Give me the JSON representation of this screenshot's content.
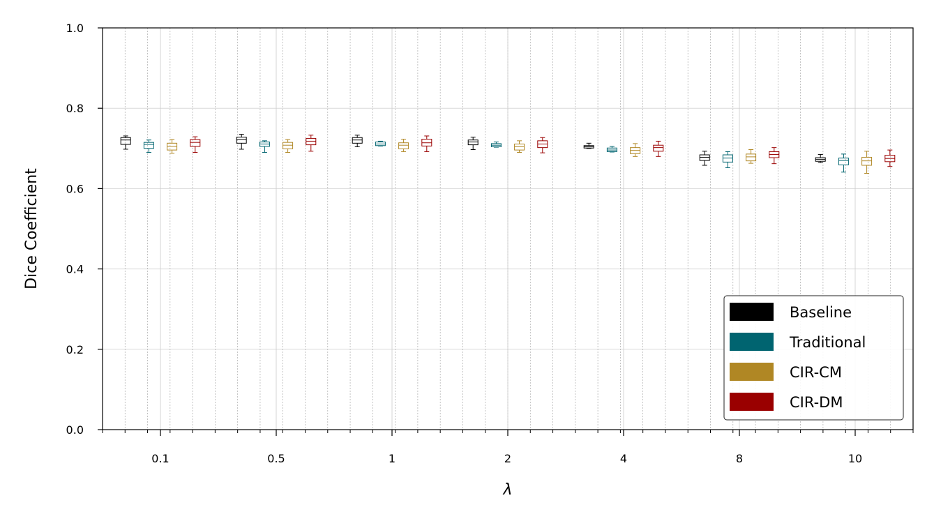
{
  "chart_data": {
    "type": "box",
    "xlabel": "λ",
    "ylabel": "Dice Coefficient",
    "ylim": [
      0.0,
      1.0
    ],
    "yticks": [
      "0.0",
      "0.2",
      "0.4",
      "0.6",
      "0.8",
      "1.0"
    ],
    "categories": [
      "0.1",
      "0.5",
      "1",
      "2",
      "4",
      "8",
      "10"
    ],
    "grid": true,
    "legend_position": "bottom-right",
    "series": [
      {
        "name": "Baseline",
        "color": "#000000",
        "boxes": [
          {
            "whislo": 0.698,
            "q1": 0.71,
            "med": 0.721,
            "q3": 0.727,
            "whishi": 0.731
          },
          {
            "whislo": 0.698,
            "q1": 0.713,
            "med": 0.722,
            "q3": 0.728,
            "whishi": 0.735
          },
          {
            "whislo": 0.704,
            "q1": 0.713,
            "med": 0.721,
            "q3": 0.727,
            "whishi": 0.733
          },
          {
            "whislo": 0.697,
            "q1": 0.709,
            "med": 0.716,
            "q3": 0.721,
            "whishi": 0.728
          },
          {
            "whislo": 0.7,
            "q1": 0.701,
            "med": 0.704,
            "q3": 0.707,
            "whishi": 0.713
          },
          {
            "whislo": 0.658,
            "q1": 0.67,
            "med": 0.678,
            "q3": 0.684,
            "whishi": 0.693
          },
          {
            "whislo": 0.665,
            "q1": 0.668,
            "med": 0.673,
            "q3": 0.677,
            "whishi": 0.685
          }
        ]
      },
      {
        "name": "Traditional",
        "color": "#006470",
        "boxes": [
          {
            "whislo": 0.69,
            "q1": 0.7,
            "med": 0.71,
            "q3": 0.715,
            "whishi": 0.721
          },
          {
            "whislo": 0.69,
            "q1": 0.705,
            "med": 0.711,
            "q3": 0.716,
            "whishi": 0.719
          },
          {
            "whislo": 0.706,
            "q1": 0.707,
            "med": 0.711,
            "q3": 0.716,
            "whishi": 0.718
          },
          {
            "whislo": 0.703,
            "q1": 0.704,
            "med": 0.708,
            "q3": 0.712,
            "whishi": 0.716
          },
          {
            "whislo": 0.691,
            "q1": 0.692,
            "med": 0.696,
            "q3": 0.701,
            "whishi": 0.705
          },
          {
            "whislo": 0.652,
            "q1": 0.666,
            "med": 0.676,
            "q3": 0.684,
            "whishi": 0.692
          },
          {
            "whislo": 0.641,
            "q1": 0.659,
            "med": 0.67,
            "q3": 0.676,
            "whishi": 0.686
          }
        ]
      },
      {
        "name": "CIR-CM",
        "color": "#B08724",
        "boxes": [
          {
            "whislo": 0.688,
            "q1": 0.696,
            "med": 0.705,
            "q3": 0.713,
            "whishi": 0.722
          },
          {
            "whislo": 0.69,
            "q1": 0.699,
            "med": 0.708,
            "q3": 0.715,
            "whishi": 0.722
          },
          {
            "whislo": 0.692,
            "q1": 0.699,
            "med": 0.708,
            "q3": 0.714,
            "whishi": 0.723
          },
          {
            "whislo": 0.69,
            "q1": 0.696,
            "med": 0.704,
            "q3": 0.711,
            "whishi": 0.719
          },
          {
            "whislo": 0.68,
            "q1": 0.687,
            "med": 0.695,
            "q3": 0.702,
            "whishi": 0.712
          },
          {
            "whislo": 0.663,
            "q1": 0.669,
            "med": 0.679,
            "q3": 0.686,
            "whishi": 0.697
          },
          {
            "whislo": 0.638,
            "q1": 0.658,
            "med": 0.669,
            "q3": 0.678,
            "whishi": 0.693
          }
        ]
      },
      {
        "name": "CIR-DM",
        "color": "#9A0000",
        "boxes": [
          {
            "whislo": 0.69,
            "q1": 0.705,
            "med": 0.715,
            "q3": 0.722,
            "whishi": 0.729
          },
          {
            "whislo": 0.693,
            "q1": 0.709,
            "med": 0.718,
            "q3": 0.725,
            "whishi": 0.733
          },
          {
            "whislo": 0.692,
            "q1": 0.706,
            "med": 0.714,
            "q3": 0.723,
            "whishi": 0.731
          },
          {
            "whislo": 0.689,
            "q1": 0.702,
            "med": 0.711,
            "q3": 0.719,
            "whishi": 0.727
          },
          {
            "whislo": 0.68,
            "q1": 0.693,
            "med": 0.702,
            "q3": 0.708,
            "whishi": 0.718
          },
          {
            "whislo": 0.662,
            "q1": 0.677,
            "med": 0.685,
            "q3": 0.692,
            "whishi": 0.702
          },
          {
            "whislo": 0.655,
            "q1": 0.667,
            "med": 0.675,
            "q3": 0.683,
            "whishi": 0.696
          }
        ]
      }
    ]
  }
}
